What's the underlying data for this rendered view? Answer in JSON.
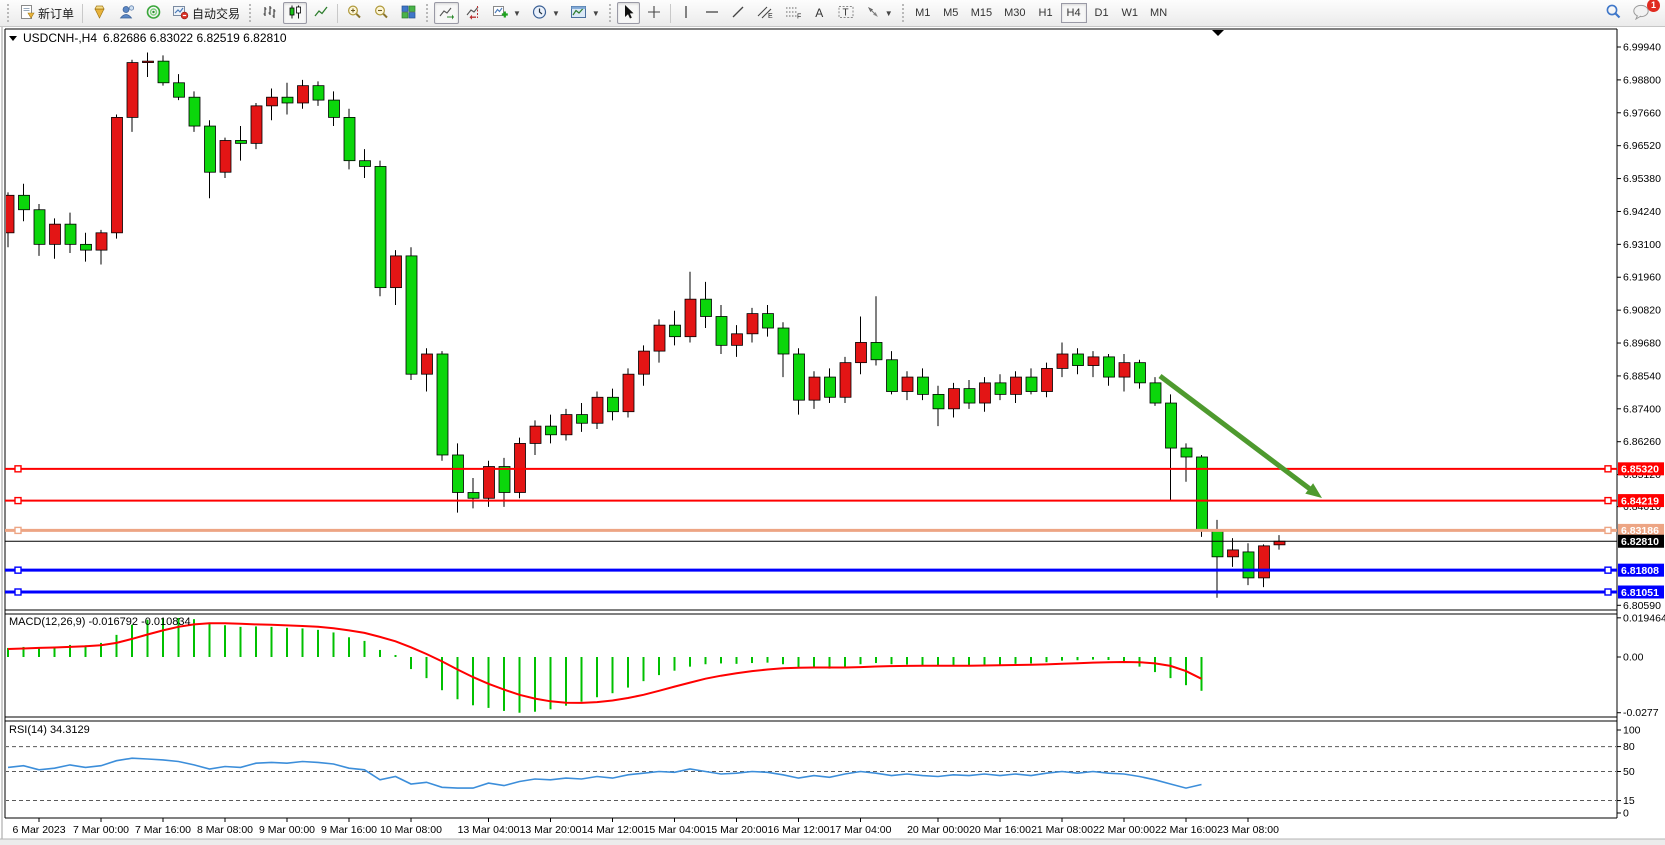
{
  "toolbar": {
    "new_order_label": "新订单",
    "autotrading_label": "自动交易",
    "timeframes": [
      "M1",
      "M5",
      "M15",
      "M30",
      "H1",
      "H4",
      "D1",
      "W1",
      "MN"
    ],
    "active_timeframe": "H4",
    "notification_count": "1"
  },
  "chart": {
    "title_symbol": "USDCNH-,H4",
    "title_ohlc": "6.82686 6.83022 6.82519 6.82810",
    "macd_label": "MACD(12,26,9) -0.016792 -0.010834",
    "rsi_label": "RSI(14) 34.3129",
    "colors": {
      "candle_up": "#e31515",
      "candle_down": "#0bd60b",
      "wick": "#000000",
      "macd_histogram": "#00c000",
      "macd_signal": "#ff0000",
      "rsi_line": "#3c8eda",
      "level_red": "#ff0000",
      "level_salmon": "#eda584",
      "level_blue": "#0000ff",
      "price_line_black": "#000000",
      "arrow_green": "#4e9a2e"
    }
  },
  "chart_data": {
    "type": "candlestick",
    "symbol": "USDCNH-",
    "period": "H4",
    "current_ohlc": {
      "open": 6.82686,
      "high": 6.83022,
      "low": 6.82519,
      "close": 6.8281
    },
    "ylim_main": [
      6.8043,
      7.0036
    ],
    "ylim_macd": [
      -0.0303,
      0.0219
    ],
    "ylim_rsi": [
      0,
      100
    ],
    "grid": false,
    "price_axis_labels": [
      "6.99940",
      "6.98800",
      "6.97660",
      "6.96520",
      "6.95380",
      "6.94240",
      "6.93100",
      "6.91960",
      "6.90820",
      "6.89680",
      "6.88540",
      "6.87400",
      "6.86260",
      "6.85120",
      "6.84010",
      "6.80590"
    ],
    "macd_axis_labels": [
      {
        "text": "0.019464",
        "v": 0.019464
      },
      {
        "text": "0.00",
        "v": 0
      },
      {
        "text": "-0.0277",
        "v": -0.0277
      }
    ],
    "rsi_axis_labels": [
      {
        "text": "100",
        "v": 100
      },
      {
        "text": "80",
        "v": 80
      },
      {
        "text": "50",
        "v": 50
      },
      {
        "text": "15",
        "v": 15
      },
      {
        "text": "0",
        "v": 0
      }
    ],
    "rsi_dashed_levels": [
      80,
      50,
      15
    ],
    "hlines": [
      {
        "label": "6.85320",
        "price": 6.8532,
        "color": "#ff0000",
        "width": 2,
        "handles": true
      },
      {
        "label": "6.84219",
        "price": 6.84219,
        "color": "#ff0000",
        "width": 2,
        "handles": true
      },
      {
        "label": "6.83186",
        "price": 6.83186,
        "color": "#eda584",
        "width": 3,
        "handles": true
      },
      {
        "label": "6.82810",
        "price": 6.8281,
        "color": "#000000",
        "width": 1,
        "handles": false
      },
      {
        "label": "6.81808",
        "price": 6.81808,
        "color": "#0000ff",
        "width": 3,
        "handles": true
      },
      {
        "label": "6.81051",
        "price": 6.81051,
        "color": "#0000ff",
        "width": 3,
        "handles": true
      }
    ],
    "annotations": [
      {
        "type": "arrow",
        "color": "#4e9a2e",
        "note": "down-sloping green arrow pointing to 6.84219 level"
      }
    ],
    "time_ticks": [
      {
        "label": "6 Mar 2023",
        "bar": 2
      },
      {
        "label": "7 Mar 00:00",
        "bar": 6
      },
      {
        "label": "7 Mar 16:00",
        "bar": 10
      },
      {
        "label": "8 Mar 08:00",
        "bar": 14
      },
      {
        "label": "9 Mar 00:00",
        "bar": 18
      },
      {
        "label": "9 Mar 16:00",
        "bar": 22
      },
      {
        "label": "10 Mar 08:00",
        "bar": 26
      },
      {
        "label": "13 Mar 04:00",
        "bar": 31
      },
      {
        "label": "13 Mar 20:00",
        "bar": 35
      },
      {
        "label": "14 Mar 12:00",
        "bar": 39
      },
      {
        "label": "15 Mar 04:00",
        "bar": 43
      },
      {
        "label": "15 Mar 20:00",
        "bar": 47
      },
      {
        "label": "16 Mar 12:00",
        "bar": 51
      },
      {
        "label": "17 Mar 04:00",
        "bar": 55
      },
      {
        "label": "20 Mar 00:00",
        "bar": 60
      },
      {
        "label": "20 Mar 16:00",
        "bar": 64
      },
      {
        "label": "21 Mar 08:00",
        "bar": 68
      },
      {
        "label": "22 Mar 00:00",
        "bar": 72
      },
      {
        "label": "22 Mar 16:00",
        "bar": 76
      },
      {
        "label": "23 Mar 08:00",
        "bar": 80
      }
    ],
    "candles": [
      {
        "t": "6 Mar 00:00",
        "o": 6.935,
        "h": 6.949,
        "l": 6.93,
        "c": 6.948
      },
      {
        "t": "6 Mar 04:00",
        "o": 6.948,
        "h": 6.952,
        "l": 6.939,
        "c": 6.943
      },
      {
        "t": "6 Mar 08:00",
        "o": 6.943,
        "h": 6.945,
        "l": 6.927,
        "c": 6.931
      },
      {
        "t": "6 Mar 12:00",
        "o": 6.931,
        "h": 6.94,
        "l": 6.926,
        "c": 6.938
      },
      {
        "t": "6 Mar 16:00",
        "o": 6.938,
        "h": 6.942,
        "l": 6.928,
        "c": 6.931
      },
      {
        "t": "6 Mar 20:00",
        "o": 6.931,
        "h": 6.935,
        "l": 6.925,
        "c": 6.929
      },
      {
        "t": "7 Mar 00:00",
        "o": 6.929,
        "h": 6.936,
        "l": 6.924,
        "c": 6.935
      },
      {
        "t": "7 Mar 04:00",
        "o": 6.935,
        "h": 6.976,
        "l": 6.933,
        "c": 6.975
      },
      {
        "t": "7 Mar 08:00",
        "o": 6.975,
        "h": 6.995,
        "l": 6.97,
        "c": 6.994
      },
      {
        "t": "7 Mar 12:00",
        "o": 6.994,
        "h": 6.9975,
        "l": 6.989,
        "c": 6.9945
      },
      {
        "t": "7 Mar 16:00",
        "o": 6.9945,
        "h": 6.9965,
        "l": 6.986,
        "c": 6.987
      },
      {
        "t": "7 Mar 20:00",
        "o": 6.987,
        "h": 6.99,
        "l": 6.981,
        "c": 6.982
      },
      {
        "t": "8 Mar 00:00",
        "o": 6.982,
        "h": 6.984,
        "l": 6.97,
        "c": 6.972
      },
      {
        "t": "8 Mar 04:00",
        "o": 6.972,
        "h": 6.974,
        "l": 6.947,
        "c": 6.956
      },
      {
        "t": "8 Mar 08:00",
        "o": 6.956,
        "h": 6.968,
        "l": 6.954,
        "c": 6.967
      },
      {
        "t": "8 Mar 12:00",
        "o": 6.967,
        "h": 6.972,
        "l": 6.96,
        "c": 6.966
      },
      {
        "t": "8 Mar 16:00",
        "o": 6.966,
        "h": 6.98,
        "l": 6.964,
        "c": 6.979
      },
      {
        "t": "8 Mar 20:00",
        "o": 6.979,
        "h": 6.985,
        "l": 6.974,
        "c": 6.982
      },
      {
        "t": "9 Mar 00:00",
        "o": 6.982,
        "h": 6.987,
        "l": 6.976,
        "c": 6.98
      },
      {
        "t": "9 Mar 04:00",
        "o": 6.98,
        "h": 6.988,
        "l": 6.978,
        "c": 6.986
      },
      {
        "t": "9 Mar 08:00",
        "o": 6.986,
        "h": 6.9875,
        "l": 6.979,
        "c": 6.981
      },
      {
        "t": "9 Mar 12:00",
        "o": 6.981,
        "h": 6.984,
        "l": 6.972,
        "c": 6.975
      },
      {
        "t": "9 Mar 16:00",
        "o": 6.975,
        "h": 6.978,
        "l": 6.957,
        "c": 6.96
      },
      {
        "t": "9 Mar 20:00",
        "o": 6.96,
        "h": 6.964,
        "l": 6.954,
        "c": 6.958
      },
      {
        "t": "10 Mar 00:00",
        "o": 6.958,
        "h": 6.96,
        "l": 6.913,
        "c": 6.916
      },
      {
        "t": "10 Mar 04:00",
        "o": 6.916,
        "h": 6.929,
        "l": 6.91,
        "c": 6.927
      },
      {
        "t": "10 Mar 08:00",
        "o": 6.927,
        "h": 6.93,
        "l": 6.884,
        "c": 6.886
      },
      {
        "t": "10 Mar 12:00",
        "o": 6.886,
        "h": 6.895,
        "l": 6.88,
        "c": 6.893
      },
      {
        "t": "10 Mar 16:00",
        "o": 6.893,
        "h": 6.894,
        "l": 6.856,
        "c": 6.858
      },
      {
        "t": "10 Mar 20:00",
        "o": 6.858,
        "h": 6.862,
        "l": 6.838,
        "c": 6.845
      },
      {
        "t": "13 Mar 00:00",
        "o": 6.845,
        "h": 6.85,
        "l": 6.8395,
        "c": 6.843
      },
      {
        "t": "13 Mar 04:00",
        "o": 6.843,
        "h": 6.856,
        "l": 6.84,
        "c": 6.854
      },
      {
        "t": "13 Mar 08:00",
        "o": 6.854,
        "h": 6.857,
        "l": 6.84,
        "c": 6.845
      },
      {
        "t": "13 Mar 12:00",
        "o": 6.845,
        "h": 6.864,
        "l": 6.843,
        "c": 6.862
      },
      {
        "t": "13 Mar 16:00",
        "o": 6.862,
        "h": 6.87,
        "l": 6.858,
        "c": 6.868
      },
      {
        "t": "13 Mar 20:00",
        "o": 6.868,
        "h": 6.872,
        "l": 6.862,
        "c": 6.865
      },
      {
        "t": "14 Mar 00:00",
        "o": 6.865,
        "h": 6.874,
        "l": 6.863,
        "c": 6.872
      },
      {
        "t": "14 Mar 04:00",
        "o": 6.872,
        "h": 6.876,
        "l": 6.866,
        "c": 6.869
      },
      {
        "t": "14 Mar 08:00",
        "o": 6.869,
        "h": 6.88,
        "l": 6.867,
        "c": 6.878
      },
      {
        "t": "14 Mar 12:00",
        "o": 6.878,
        "h": 6.881,
        "l": 6.87,
        "c": 6.873
      },
      {
        "t": "14 Mar 16:00",
        "o": 6.873,
        "h": 6.888,
        "l": 6.871,
        "c": 6.886
      },
      {
        "t": "14 Mar 20:00",
        "o": 6.886,
        "h": 6.896,
        "l": 6.882,
        "c": 6.894
      },
      {
        "t": "15 Mar 00:00",
        "o": 6.894,
        "h": 6.905,
        "l": 6.89,
        "c": 6.903
      },
      {
        "t": "15 Mar 04:00",
        "o": 6.903,
        "h": 6.908,
        "l": 6.896,
        "c": 6.899
      },
      {
        "t": "15 Mar 08:00",
        "o": 6.899,
        "h": 6.9215,
        "l": 6.897,
        "c": 6.912
      },
      {
        "t": "15 Mar 12:00",
        "o": 6.912,
        "h": 6.918,
        "l": 6.902,
        "c": 6.906
      },
      {
        "t": "15 Mar 16:00",
        "o": 6.906,
        "h": 6.91,
        "l": 6.893,
        "c": 6.896
      },
      {
        "t": "15 Mar 20:00",
        "o": 6.896,
        "h": 6.903,
        "l": 6.892,
        "c": 6.9
      },
      {
        "t": "16 Mar 00:00",
        "o": 6.9,
        "h": 6.909,
        "l": 6.897,
        "c": 6.907
      },
      {
        "t": "16 Mar 04:00",
        "o": 6.907,
        "h": 6.91,
        "l": 6.899,
        "c": 6.902
      },
      {
        "t": "16 Mar 08:00",
        "o": 6.902,
        "h": 6.904,
        "l": 6.885,
        "c": 6.893
      },
      {
        "t": "16 Mar 12:00",
        "o": 6.893,
        "h": 6.895,
        "l": 6.872,
        "c": 6.877
      },
      {
        "t": "16 Mar 16:00",
        "o": 6.877,
        "h": 6.887,
        "l": 6.874,
        "c": 6.885
      },
      {
        "t": "16 Mar 20:00",
        "o": 6.885,
        "h": 6.888,
        "l": 6.876,
        "c": 6.878
      },
      {
        "t": "17 Mar 00:00",
        "o": 6.878,
        "h": 6.892,
        "l": 6.876,
        "c": 6.89
      },
      {
        "t": "17 Mar 04:00",
        "o": 6.89,
        "h": 6.906,
        "l": 6.886,
        "c": 6.897
      },
      {
        "t": "17 Mar 08:00",
        "o": 6.897,
        "h": 6.913,
        "l": 6.889,
        "c": 6.891
      },
      {
        "t": "17 Mar 12:00",
        "o": 6.891,
        "h": 6.894,
        "l": 6.879,
        "c": 6.88
      },
      {
        "t": "17 Mar 16:00",
        "o": 6.88,
        "h": 6.887,
        "l": 6.877,
        "c": 6.885
      },
      {
        "t": "17 Mar 20:00",
        "o": 6.885,
        "h": 6.888,
        "l": 6.877,
        "c": 6.879
      },
      {
        "t": "20 Mar 00:00",
        "o": 6.879,
        "h": 6.882,
        "l": 6.868,
        "c": 6.874
      },
      {
        "t": "20 Mar 04:00",
        "o": 6.874,
        "h": 6.883,
        "l": 6.871,
        "c": 6.881
      },
      {
        "t": "20 Mar 08:00",
        "o": 6.881,
        "h": 6.884,
        "l": 6.874,
        "c": 6.876
      },
      {
        "t": "20 Mar 12:00",
        "o": 6.876,
        "h": 6.885,
        "l": 6.873,
        "c": 6.883
      },
      {
        "t": "20 Mar 16:00",
        "o": 6.883,
        "h": 6.886,
        "l": 6.877,
        "c": 6.879
      },
      {
        "t": "20 Mar 20:00",
        "o": 6.879,
        "h": 6.887,
        "l": 6.876,
        "c": 6.885
      },
      {
        "t": "21 Mar 00:00",
        "o": 6.885,
        "h": 6.888,
        "l": 6.879,
        "c": 6.88
      },
      {
        "t": "21 Mar 04:00",
        "o": 6.88,
        "h": 6.89,
        "l": 6.878,
        "c": 6.888
      },
      {
        "t": "21 Mar 08:00",
        "o": 6.888,
        "h": 6.897,
        "l": 6.885,
        "c": 6.893
      },
      {
        "t": "21 Mar 12:00",
        "o": 6.893,
        "h": 6.895,
        "l": 6.886,
        "c": 6.889
      },
      {
        "t": "21 Mar 16:00",
        "o": 6.889,
        "h": 6.894,
        "l": 6.885,
        "c": 6.892
      },
      {
        "t": "21 Mar 20:00",
        "o": 6.892,
        "h": 6.893,
        "l": 6.882,
        "c": 6.885
      },
      {
        "t": "22 Mar 00:00",
        "o": 6.885,
        "h": 6.893,
        "l": 6.88,
        "c": 6.89
      },
      {
        "t": "22 Mar 04:00",
        "o": 6.89,
        "h": 6.891,
        "l": 6.881,
        "c": 6.883
      },
      {
        "t": "22 Mar 08:00",
        "o": 6.883,
        "h": 6.885,
        "l": 6.875,
        "c": 6.876
      },
      {
        "t": "22 Mar 12:00",
        "o": 6.876,
        "h": 6.879,
        "l": 6.8424,
        "c": 6.8604
      },
      {
        "t": "22 Mar 16:00",
        "o": 6.8604,
        "h": 6.862,
        "l": 6.8487,
        "c": 6.8573
      },
      {
        "t": "22 Mar 20:00",
        "o": 6.8573,
        "h": 6.858,
        "l": 6.8296,
        "c": 6.832
      },
      {
        "t": "23 Mar 00:00",
        "o": 6.832,
        "h": 6.8355,
        "l": 6.8085,
        "c": 6.8227
      },
      {
        "t": "23 Mar 04:00",
        "o": 6.8227,
        "h": 6.8292,
        "l": 6.8192,
        "c": 6.8251
      },
      {
        "t": "23 Mar 08:00",
        "o": 6.8244,
        "h": 6.8274,
        "l": 6.8129,
        "c": 6.8154
      },
      {
        "t": "23 Mar 12:00",
        "o": 6.8154,
        "h": 6.827,
        "l": 6.8122,
        "c": 6.8265
      },
      {
        "t": "23 Mar 16:00",
        "o": 6.82686,
        "h": 6.83022,
        "l": 6.82519,
        "c": 6.8281
      }
    ],
    "indicators": {
      "macd": {
        "name": "MACD(12,26,9)",
        "current_main": -0.016792,
        "current_signal": -0.010834,
        "histogram": [
          0.0045,
          0.005,
          0.0048,
          0.0052,
          0.006,
          0.0058,
          0.007,
          0.011,
          0.016,
          0.0185,
          0.0192,
          0.0194,
          0.0188,
          0.017,
          0.0158,
          0.015,
          0.0152,
          0.015,
          0.0145,
          0.0142,
          0.0135,
          0.0122,
          0.0098,
          0.008,
          0.0035,
          0.001,
          -0.006,
          -0.0105,
          -0.0165,
          -0.021,
          -0.024,
          -0.0253,
          -0.0268,
          -0.0277,
          -0.0272,
          -0.026,
          -0.0242,
          -0.0222,
          -0.02,
          -0.018,
          -0.0152,
          -0.012,
          -0.009,
          -0.0068,
          -0.0048,
          -0.0036,
          -0.0032,
          -0.0034,
          -0.003,
          -0.0028,
          -0.0036,
          -0.0052,
          -0.0056,
          -0.0058,
          -0.0048,
          -0.0036,
          -0.003,
          -0.0036,
          -0.0038,
          -0.0042,
          -0.0046,
          -0.0044,
          -0.0044,
          -0.004,
          -0.0038,
          -0.0034,
          -0.0032,
          -0.0026,
          -0.0018,
          -0.0016,
          -0.0013,
          -0.0015,
          -0.003,
          -0.0048,
          -0.0075,
          -0.0105,
          -0.014,
          -0.016792
        ],
        "signal": [
          0.004,
          0.0042,
          0.0045,
          0.0047,
          0.005,
          0.0053,
          0.0058,
          0.007,
          0.009,
          0.0112,
          0.0132,
          0.015,
          0.0162,
          0.0168,
          0.0168,
          0.0165,
          0.0162,
          0.016,
          0.0157,
          0.0154,
          0.015,
          0.0143,
          0.0132,
          0.012,
          0.01,
          0.0078,
          0.0048,
          0.0015,
          -0.0022,
          -0.0062,
          -0.01,
          -0.0133,
          -0.0162,
          -0.0188,
          -0.0207,
          -0.022,
          -0.0227,
          -0.0228,
          -0.0224,
          -0.0216,
          -0.0204,
          -0.0188,
          -0.0168,
          -0.0147,
          -0.0127,
          -0.0108,
          -0.0093,
          -0.0081,
          -0.007,
          -0.0062,
          -0.0056,
          -0.0053,
          -0.0052,
          -0.0052,
          -0.0052,
          -0.005,
          -0.0047,
          -0.0045,
          -0.0044,
          -0.0043,
          -0.0043,
          -0.0043,
          -0.0043,
          -0.0042,
          -0.0041,
          -0.004,
          -0.0039,
          -0.0037,
          -0.0034,
          -0.0031,
          -0.0028,
          -0.0026,
          -0.0025,
          -0.0026,
          -0.0032,
          -0.0044,
          -0.007,
          -0.010834
        ]
      },
      "rsi": {
        "name": "RSI(14)",
        "current": 34.3129,
        "values": [
          55,
          57,
          52,
          54,
          58,
          55,
          57,
          63,
          66,
          65,
          64,
          62,
          58,
          53,
          56,
          55,
          60,
          61,
          60,
          62,
          61,
          59,
          54,
          52,
          40,
          44,
          35,
          37,
          31,
          30,
          30,
          36,
          33,
          38,
          41,
          40,
          42,
          41,
          44,
          42,
          46,
          48,
          50,
          49,
          53,
          50,
          47,
          48,
          50,
          49,
          46,
          42,
          45,
          43,
          47,
          50,
          48,
          45,
          47,
          45,
          44,
          46,
          45,
          47,
          45,
          47,
          45,
          48,
          50,
          48,
          50,
          48,
          47,
          44,
          40,
          35,
          30,
          34.3129
        ]
      }
    }
  }
}
